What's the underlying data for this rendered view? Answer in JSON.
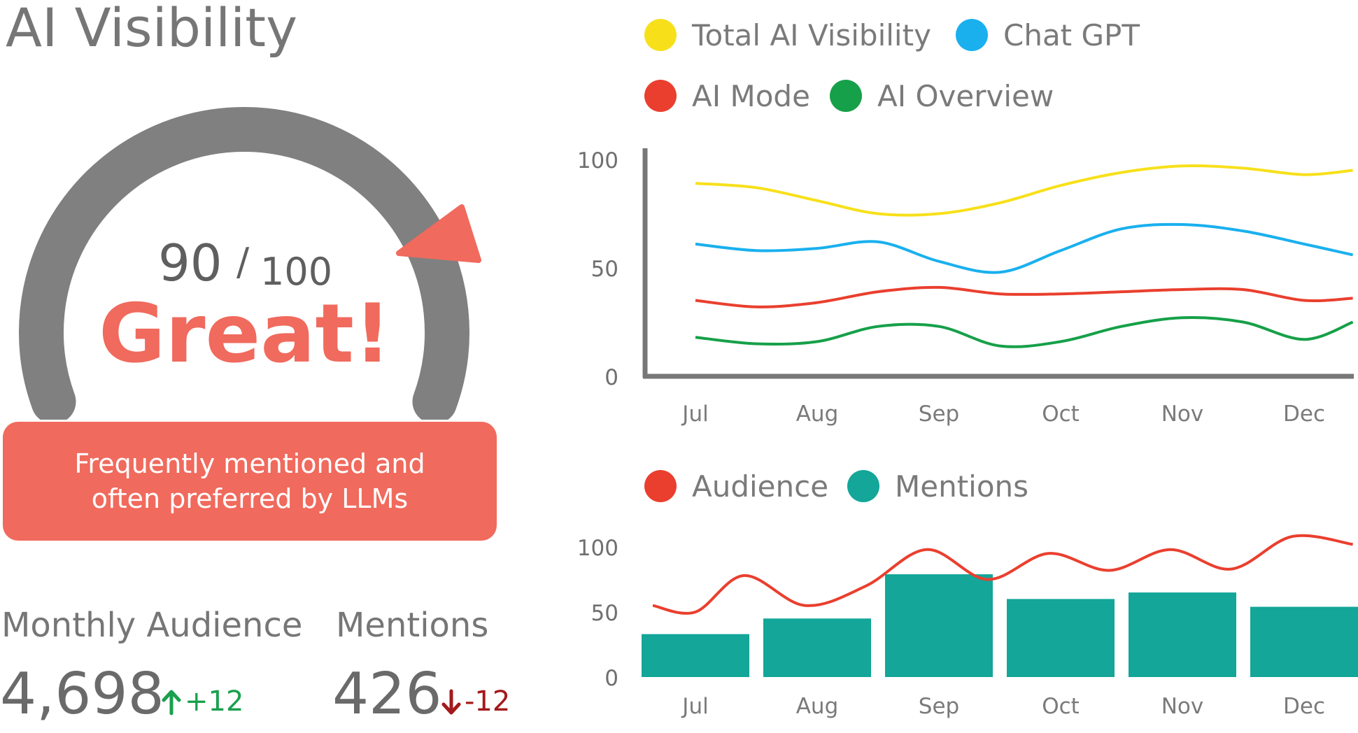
{
  "page": {
    "title": "AI Visibility"
  },
  "gauge": {
    "score": "90",
    "slash": "/",
    "max_label": "100",
    "score_value": 90,
    "score_max": 100,
    "grade": "Great!",
    "message": "Frequently mentioned and often  preferred by LLMs",
    "track_color": "#808080",
    "accent_color": "#f06a5d"
  },
  "stats": {
    "audience": {
      "label": "Monthly Audience",
      "value": "4,698",
      "delta": "+12",
      "direction": "up",
      "color": "#1aa04e",
      "icon": "arrow-up-icon"
    },
    "mentions": {
      "label": "Mentions",
      "value": "426",
      "delta": "-12",
      "direction": "down",
      "color": "#a3191c",
      "icon": "arrow-down-icon"
    }
  },
  "chart_data": [
    {
      "type": "line",
      "categories": [
        "Jul",
        "Aug",
        "Sep",
        "Oct",
        "Nov",
        "Dec"
      ],
      "ylim": [
        0,
        100
      ],
      "yticks": [
        "0",
        "50",
        "100"
      ],
      "legend": "top",
      "grid": false,
      "series": [
        {
          "name": "Total AI Visibility",
          "color": "#f7e01a",
          "x": [
            0,
            0.5,
            1,
            1.5,
            2,
            2.5,
            3,
            3.5,
            4,
            4.5,
            5,
            5.4
          ],
          "values": [
            89,
            87,
            81,
            75,
            75,
            80,
            88,
            94,
            97,
            96,
            93,
            95
          ]
        },
        {
          "name": "Chat GPT",
          "color": "#1ab0ee",
          "x": [
            0,
            0.5,
            1,
            1.5,
            2,
            2.5,
            3,
            3.5,
            4,
            4.5,
            5,
            5.4
          ],
          "values": [
            61,
            58,
            59,
            62,
            53,
            48,
            58,
            68,
            70,
            67,
            61,
            56
          ]
        },
        {
          "name": "AI Mode",
          "color": "#ea3f2e",
          "x": [
            0,
            0.5,
            1,
            1.5,
            2,
            2.5,
            3,
            3.5,
            4,
            4.5,
            5,
            5.4
          ],
          "values": [
            35,
            32,
            34,
            39,
            41,
            38,
            38,
            39,
            40,
            40,
            35,
            36
          ]
        },
        {
          "name": "AI Overview",
          "color": "#16a049",
          "x": [
            0,
            0.5,
            1,
            1.5,
            2,
            2.5,
            3,
            3.5,
            4,
            4.5,
            5,
            5.4
          ],
          "values": [
            18,
            15,
            16,
            23,
            23,
            14,
            16,
            23,
            27,
            25,
            17,
            25
          ]
        }
      ]
    },
    {
      "type": "bar",
      "categories": [
        "Jul",
        "Aug",
        "Sep",
        "Oct",
        "Nov",
        "Dec"
      ],
      "ylim": [
        0,
        100
      ],
      "yticks": [
        "0",
        "50",
        "100"
      ],
      "legend": "top",
      "grid": false,
      "series": [
        {
          "name": "Mentions",
          "type": "bar",
          "color": "#13a699",
          "values": [
            33,
            45,
            79,
            60,
            65,
            54
          ]
        },
        {
          "name": "Audience",
          "type": "line",
          "color": "#ea3f2e",
          "x": [
            -0.35,
            0,
            0.4,
            0.9,
            1.4,
            1.9,
            2.4,
            2.9,
            3.4,
            3.9,
            4.4,
            4.9,
            5.4
          ],
          "values": [
            55,
            50,
            78,
            55,
            70,
            98,
            75,
            95,
            82,
            98,
            83,
            108,
            102
          ]
        }
      ]
    }
  ]
}
